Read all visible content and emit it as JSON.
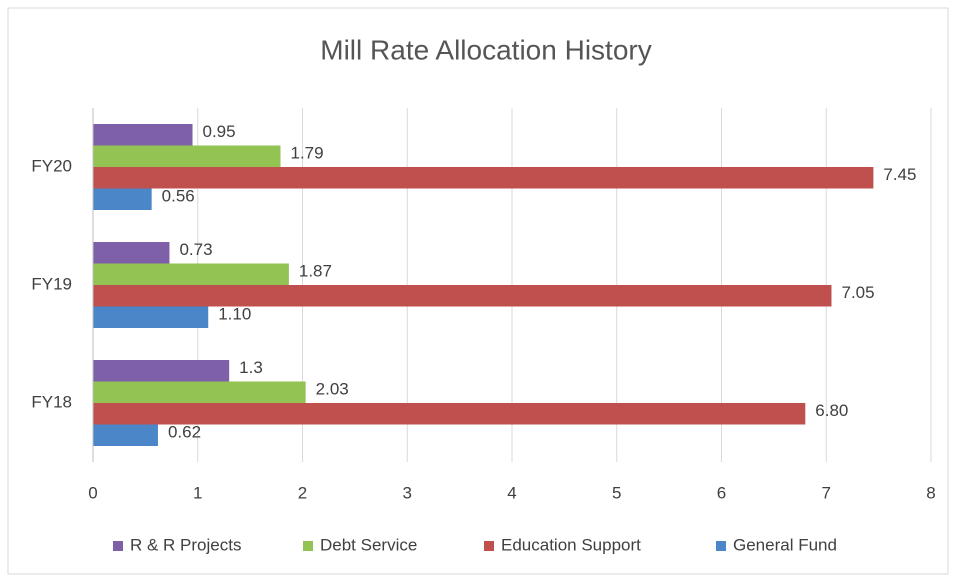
{
  "chart_data": {
    "type": "hbar",
    "title": "Mill Rate Allocation History",
    "categories": [
      "FY18",
      "FY19",
      "FY20"
    ],
    "series": [
      {
        "name": "R & R Projects",
        "color": "#7e60a8",
        "values": [
          1.3,
          0.73,
          0.95
        ]
      },
      {
        "name": "Debt Service",
        "color": "#92c353",
        "values": [
          2.03,
          1.87,
          1.79
        ]
      },
      {
        "name": "Education Support",
        "color": "#c0504d",
        "values": [
          6.8,
          7.05,
          7.45
        ],
        "value_labels": [
          "6.80",
          "7.05",
          "7.45"
        ]
      },
      {
        "name": "General Fund",
        "color": "#4a86c8",
        "values": [
          0.62,
          1.1,
          0.56
        ],
        "value_labels": [
          "0.62",
          "1.10",
          "0.56"
        ]
      }
    ],
    "xlim": [
      0,
      8
    ],
    "xticks": [
      0,
      1,
      2,
      3,
      4,
      5,
      6,
      7,
      8
    ],
    "grid": true,
    "legend": "bottom"
  }
}
